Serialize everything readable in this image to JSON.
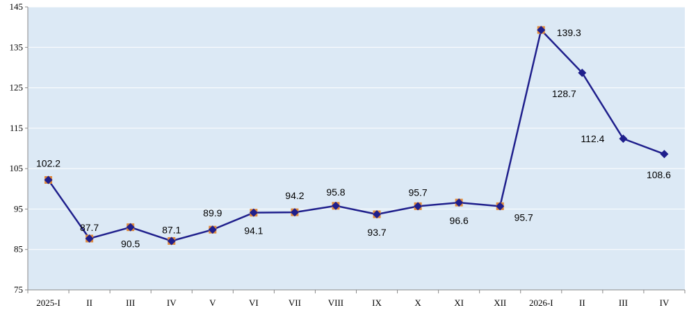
{
  "chart_data": {
    "type": "line",
    "title": "",
    "xlabel": "",
    "ylabel": "",
    "categories": [
      "2025-I",
      "II",
      "III",
      "IV",
      "V",
      "VI",
      "VII",
      "VIII",
      "IX",
      "X",
      "XI",
      "XII",
      "2026-I",
      "II",
      "III",
      "IV"
    ],
    "series": [
      {
        "values": [
          102.2,
          87.7,
          90.5,
          87.1,
          89.9,
          94.1,
          94.2,
          95.8,
          93.7,
          95.7,
          96.6,
          95.7,
          139.3,
          128.7,
          112.4,
          108.6
        ],
        "labels": [
          "102.2",
          "87.7",
          "90.5",
          "87.1",
          "89.9",
          "94.1",
          "94.2",
          "95.8",
          "93.7",
          "95.7",
          "96.6",
          "95.7",
          "139.3",
          "128.7",
          "112.4",
          "108.6"
        ]
      }
    ],
    "ylim": [
      75,
      145
    ],
    "yticks": [
      "75",
      "85",
      "95",
      "105",
      "115",
      "125",
      "135",
      "145"
    ],
    "grid": true,
    "legend": "none",
    "colors": {
      "line": "#1F1F8C",
      "marker": "#1F1F8C",
      "marker_highlight": "#E08A3C",
      "plot_bg": "#DCE9F5",
      "grid": "#FFFFFF",
      "axis": "#888888"
    }
  }
}
